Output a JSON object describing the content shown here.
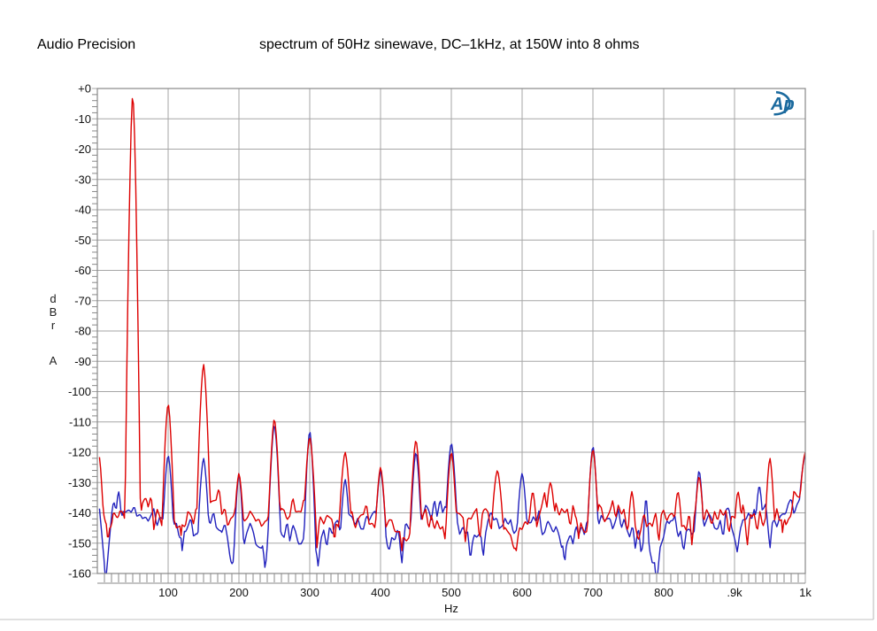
{
  "header": {
    "brand": "Audio Precision",
    "title": "spectrum of 50Hz sinewave, DC–1kHz, at 150W into 8 ohms"
  },
  "logo": {
    "text": "Ap",
    "color": "#1b6a9e"
  },
  "chart_data": {
    "type": "line",
    "title": "spectrum of 50Hz sinewave, DC–1kHz, at 150W into 8 ohms",
    "xlabel": "Hz",
    "ylabel": "dBr A",
    "ylabel_lines": [
      "d",
      "B",
      "r",
      "A"
    ],
    "xlim": [
      0,
      1000
    ],
    "ylim": [
      -160,
      0
    ],
    "grid": true,
    "x_minor_step_hz": 10,
    "y_minor_step_db": 2,
    "x_ticks": [
      {
        "f": 100,
        "label": "100"
      },
      {
        "f": 200,
        "label": "200"
      },
      {
        "f": 300,
        "label": "300"
      },
      {
        "f": 400,
        "label": "400"
      },
      {
        "f": 500,
        "label": "500"
      },
      {
        "f": 600,
        "label": "600"
      },
      {
        "f": 700,
        "label": "700"
      },
      {
        "f": 800,
        "label": "800"
      },
      {
        "f": 900,
        "label": ".9k"
      },
      {
        "f": 1000,
        "label": "1k"
      }
    ],
    "y_ticks": [
      {
        "db": 0,
        "label": "+0"
      },
      {
        "db": -10,
        "label": "-10"
      },
      {
        "db": -20,
        "label": "-20"
      },
      {
        "db": -30,
        "label": "-30"
      },
      {
        "db": -40,
        "label": "-40"
      },
      {
        "db": -50,
        "label": "-50"
      },
      {
        "db": -60,
        "label": "-60"
      },
      {
        "db": -70,
        "label": "-70"
      },
      {
        "db": -80,
        "label": "-80"
      },
      {
        "db": -90,
        "label": "-90"
      },
      {
        "db": -100,
        "label": "-100"
      },
      {
        "db": -110,
        "label": "-110"
      },
      {
        "db": -120,
        "label": "-120"
      },
      {
        "db": -130,
        "label": "-130"
      },
      {
        "db": -140,
        "label": "-140"
      },
      {
        "db": -150,
        "label": "-150"
      },
      {
        "db": -160,
        "label": "-160"
      }
    ],
    "grid_color": "#a6a6a6",
    "border_color": "#888888",
    "text_color": "#111111",
    "series": [
      {
        "name": "blue",
        "color": "#2121bd",
        "seed": 5,
        "noise_amp_db": 6,
        "peaks_f_db_w": [
          [
            30,
            -133,
            5
          ],
          [
            100,
            -121,
            8
          ],
          [
            150,
            -122,
            8
          ],
          [
            200,
            -127,
            7
          ],
          [
            250,
            -111,
            9
          ],
          [
            300,
            -113,
            9
          ],
          [
            350,
            -129,
            7
          ],
          [
            400,
            -126,
            8
          ],
          [
            450,
            -120,
            8
          ],
          [
            500,
            -117,
            9
          ],
          [
            600,
            -127,
            8
          ],
          [
            700,
            -118,
            8
          ],
          [
            775,
            -135,
            5
          ],
          [
            850,
            -126,
            7
          ],
          [
            935,
            -131,
            6
          ],
          [
            1000,
            -121,
            8
          ]
        ],
        "noise_floor_f_db": [
          [
            1,
            -128
          ],
          [
            7,
            -146
          ],
          [
            11,
            -161
          ],
          [
            15,
            -150
          ],
          [
            20,
            -139
          ],
          [
            35,
            -141
          ],
          [
            55,
            -140
          ],
          [
            80,
            -139
          ],
          [
            110,
            -143
          ],
          [
            125,
            -148
          ],
          [
            145,
            -142
          ],
          [
            175,
            -144
          ],
          [
            190,
            -152
          ],
          [
            210,
            -144
          ],
          [
            232,
            -152
          ],
          [
            245,
            -142
          ],
          [
            265,
            -145
          ],
          [
            285,
            -148
          ],
          [
            312,
            -152
          ],
          [
            330,
            -144
          ],
          [
            360,
            -143
          ],
          [
            390,
            -142
          ],
          [
            420,
            -147
          ],
          [
            440,
            -143
          ],
          [
            465,
            -141
          ],
          [
            490,
            -140
          ],
          [
            525,
            -148
          ],
          [
            540,
            -146
          ],
          [
            570,
            -142
          ],
          [
            585,
            -145
          ],
          [
            620,
            -143
          ],
          [
            655,
            -150
          ],
          [
            680,
            -144
          ],
          [
            710,
            -142
          ],
          [
            745,
            -143
          ],
          [
            790,
            -155
          ],
          [
            810,
            -142
          ],
          [
            830,
            -144
          ],
          [
            870,
            -143
          ],
          [
            900,
            -144
          ],
          [
            930,
            -141
          ],
          [
            960,
            -143
          ],
          [
            985,
            -138
          ],
          [
            1000,
            -130
          ]
        ],
        "dips_f_db": [
          [
            12,
            -162
          ],
          [
            120,
            -153
          ],
          [
            190,
            -156
          ],
          [
            237,
            -159
          ],
          [
            312,
            -158
          ],
          [
            430,
            -157
          ],
          [
            527,
            -156
          ],
          [
            545,
            -155
          ],
          [
            660,
            -157
          ],
          [
            790,
            -164
          ],
          [
            950,
            -152
          ]
        ]
      },
      {
        "name": "red",
        "color": "#dd0000",
        "seed": 11,
        "noise_amp_db": 5.5,
        "peaks_f_db_w": [
          [
            50,
            -2,
            11
          ],
          [
            100,
            -104,
            9
          ],
          [
            150,
            -91,
            10
          ],
          [
            200,
            -127,
            7
          ],
          [
            250,
            -109,
            9
          ],
          [
            300,
            -115,
            9
          ],
          [
            350,
            -120,
            9
          ],
          [
            400,
            -125,
            8
          ],
          [
            450,
            -116,
            9
          ],
          [
            500,
            -120,
            8
          ],
          [
            565,
            -126,
            9
          ],
          [
            615,
            -133,
            6
          ],
          [
            640,
            -130,
            7
          ],
          [
            700,
            -119,
            8
          ],
          [
            755,
            -133,
            6
          ],
          [
            820,
            -133,
            6
          ],
          [
            850,
            -128,
            7
          ],
          [
            905,
            -133,
            6
          ],
          [
            950,
            -122,
            7
          ],
          [
            1000,
            -120,
            8
          ]
        ],
        "noise_floor_f_db": [
          [
            1,
            -119
          ],
          [
            5,
            -128
          ],
          [
            10,
            -141
          ],
          [
            16,
            -146
          ],
          [
            22,
            -138
          ],
          [
            30,
            -141
          ],
          [
            45,
            -139
          ],
          [
            70,
            -136
          ],
          [
            90,
            -141
          ],
          [
            120,
            -143
          ],
          [
            140,
            -141
          ],
          [
            170,
            -135
          ],
          [
            185,
            -142
          ],
          [
            215,
            -140
          ],
          [
            235,
            -143
          ],
          [
            270,
            -139
          ],
          [
            320,
            -141
          ],
          [
            380,
            -141
          ],
          [
            430,
            -147
          ],
          [
            470,
            -141
          ],
          [
            520,
            -142
          ],
          [
            545,
            -138
          ],
          [
            590,
            -148
          ],
          [
            630,
            -138
          ],
          [
            665,
            -141
          ],
          [
            690,
            -142
          ],
          [
            730,
            -139
          ],
          [
            760,
            -145
          ],
          [
            800,
            -141
          ],
          [
            835,
            -142
          ],
          [
            870,
            -141
          ],
          [
            895,
            -143
          ],
          [
            925,
            -141
          ],
          [
            975,
            -141
          ],
          [
            1000,
            -132
          ]
        ],
        "dips_f_db": [
          [
            15,
            -150
          ],
          [
            118,
            -148
          ],
          [
            196,
            -146
          ],
          [
            310,
            -152
          ],
          [
            335,
            -150
          ],
          [
            430,
            -153
          ],
          [
            520,
            -150
          ],
          [
            592,
            -153
          ],
          [
            680,
            -149
          ],
          [
            757,
            -152
          ],
          [
            793,
            -150
          ],
          [
            918,
            -151
          ],
          [
            968,
            -147
          ]
        ]
      }
    ]
  }
}
